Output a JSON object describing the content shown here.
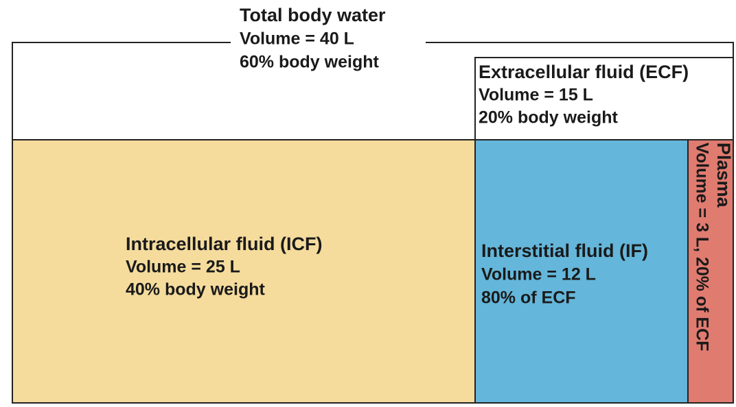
{
  "total": {
    "title": "Total body water",
    "volume": "Volume = 40 L",
    "percent": "60% body weight"
  },
  "ecf": {
    "title": "Extracellular fluid (ECF)",
    "volume": "Volume = 15 L",
    "percent": "20% body weight"
  },
  "icf": {
    "title": "Intracellular fluid (ICF)",
    "volume": "Volume = 25 L",
    "percent": "40% body weight"
  },
  "interstitial": {
    "title": "Interstitial fluid (IF)",
    "volume": "Volume = 12 L",
    "percent": "80% of ECF"
  },
  "plasma": {
    "title": "Plasma",
    "detail": "Volume = 3 L, 20% of ECF"
  }
}
